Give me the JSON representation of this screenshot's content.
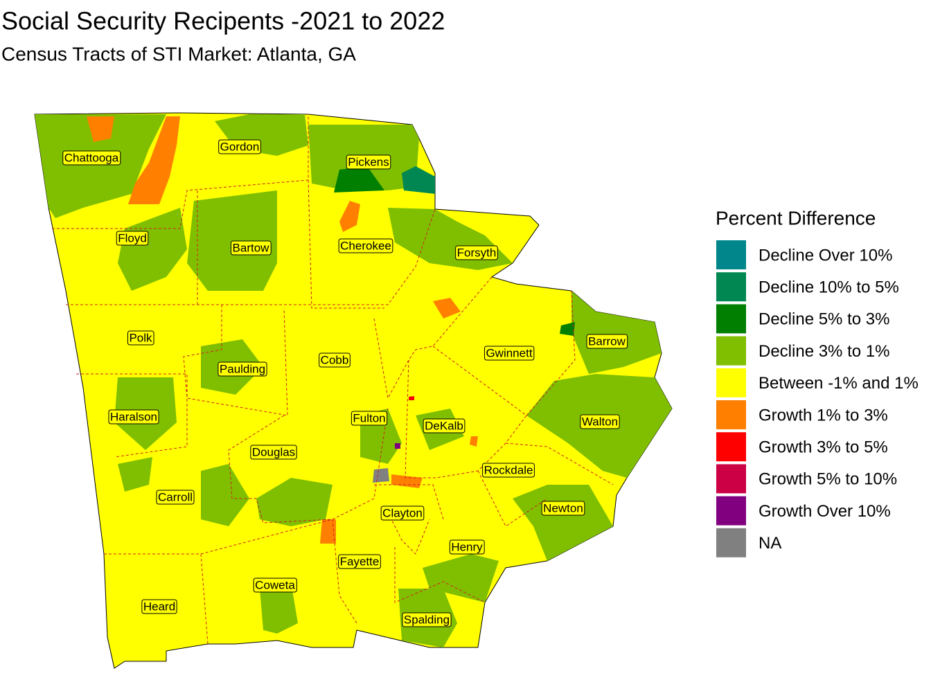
{
  "title": "Social Security Recipents -2021 to 2022",
  "subtitle": "Census Tracts of STI Market: Atlanta, GA",
  "legend": {
    "title": "Percent Difference",
    "items": [
      {
        "label": "Decline Over 10%",
        "color": "#00868b"
      },
      {
        "label": "Decline 10% to 5%",
        "color": "#008752"
      },
      {
        "label": "Decline 5% to 3%",
        "color": "#007f00"
      },
      {
        "label": "Decline 3% to 1%",
        "color": "#7fbf00"
      },
      {
        "label": "Between -1% and 1%",
        "color": "#ffff00"
      },
      {
        "label": "Growth 1% to 3%",
        "color": "#ff8000"
      },
      {
        "label": "Growth 3% to 5%",
        "color": "#ff0000"
      },
      {
        "label": "Growth 5% to 10%",
        "color": "#cc0044"
      },
      {
        "label": "Growth Over 10%",
        "color": "#800080"
      },
      {
        "label": "NA",
        "color": "#808080"
      }
    ]
  },
  "counties": [
    {
      "name": "Chattooga"
    },
    {
      "name": "Gordon"
    },
    {
      "name": "Pickens"
    },
    {
      "name": "Floyd"
    },
    {
      "name": "Bartow"
    },
    {
      "name": "Cherokee"
    },
    {
      "name": "Forsyth"
    },
    {
      "name": "Polk"
    },
    {
      "name": "Barrow"
    },
    {
      "name": "Gwinnett"
    },
    {
      "name": "Cobb"
    },
    {
      "name": "Paulding"
    },
    {
      "name": "Haralson"
    },
    {
      "name": "Fulton"
    },
    {
      "name": "Walton"
    },
    {
      "name": "DeKalb"
    },
    {
      "name": "Douglas"
    },
    {
      "name": "Rockdale"
    },
    {
      "name": "Carroll"
    },
    {
      "name": "Newton"
    },
    {
      "name": "Clayton"
    },
    {
      "name": "Henry"
    },
    {
      "name": "Fayette"
    },
    {
      "name": "Coweta"
    },
    {
      "name": "Heard"
    },
    {
      "name": "Spalding"
    }
  ]
}
